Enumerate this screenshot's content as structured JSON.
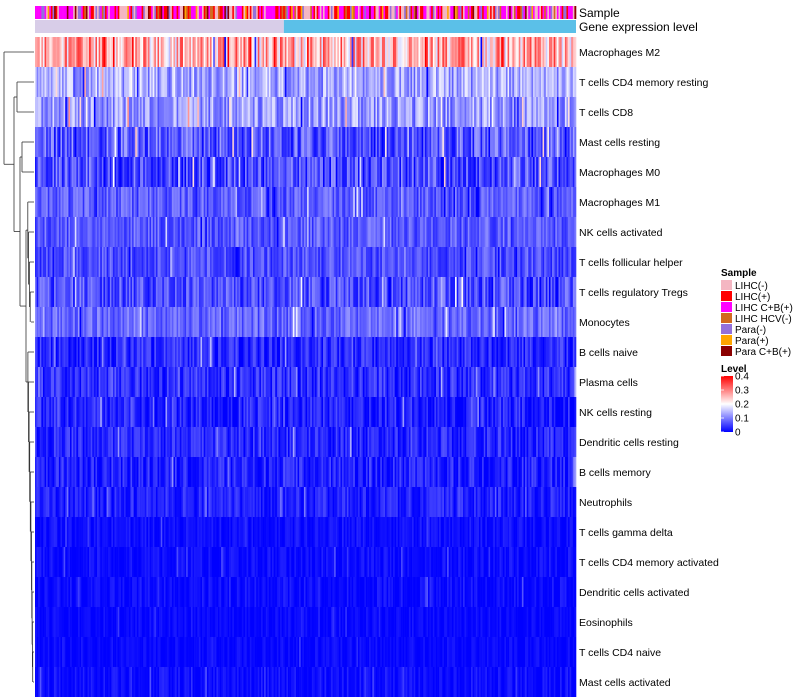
{
  "chart_data": {
    "type": "heatmap",
    "title": "",
    "column_count": 340,
    "annotations": {
      "sample_label": "Sample",
      "expression_label": "Gene expression level"
    },
    "rows": [
      {
        "name": "Macrophages M2",
        "mean": 0.26,
        "spread": 0.1
      },
      {
        "name": "T cells CD4 memory resting",
        "mean": 0.13,
        "spread": 0.06
      },
      {
        "name": "T cells CD8",
        "mean": 0.12,
        "spread": 0.06
      },
      {
        "name": "Mast cells resting",
        "mean": 0.07,
        "spread": 0.06
      },
      {
        "name": "Macrophages M0",
        "mean": 0.06,
        "spread": 0.06
      },
      {
        "name": "Macrophages M1",
        "mean": 0.07,
        "spread": 0.04
      },
      {
        "name": "NK cells activated",
        "mean": 0.07,
        "spread": 0.04
      },
      {
        "name": "T cells follicular helper",
        "mean": 0.06,
        "spread": 0.04
      },
      {
        "name": "T cells regulatory  Tregs",
        "mean": 0.06,
        "spread": 0.05
      },
      {
        "name": "Monocytes",
        "mean": 0.08,
        "spread": 0.04
      },
      {
        "name": "B cells naive",
        "mean": 0.03,
        "spread": 0.04
      },
      {
        "name": "Plasma cells",
        "mean": 0.035,
        "spread": 0.04
      },
      {
        "name": "NK cells resting",
        "mean": 0.025,
        "spread": 0.04
      },
      {
        "name": "Dendritic cells resting",
        "mean": 0.03,
        "spread": 0.035
      },
      {
        "name": "B cells memory",
        "mean": 0.025,
        "spread": 0.035
      },
      {
        "name": "Neutrophils",
        "mean": 0.025,
        "spread": 0.03
      },
      {
        "name": "T cells gamma delta",
        "mean": 0.01,
        "spread": 0.02
      },
      {
        "name": "T cells CD4 memory activated",
        "mean": 0.008,
        "spread": 0.02
      },
      {
        "name": "Dendritic cells activated",
        "mean": 0.008,
        "spread": 0.02
      },
      {
        "name": "Eosinophils",
        "mean": 0.005,
        "spread": 0.015
      },
      {
        "name": "T cells CD4 naive",
        "mean": 0.005,
        "spread": 0.015
      },
      {
        "name": "Mast cells activated",
        "mean": 0.01,
        "spread": 0.02
      }
    ],
    "color_scale": {
      "min": 0,
      "max": 0.4,
      "colors": [
        "#0000ff",
        "#ffffff",
        "#ff0000"
      ],
      "ticks": [
        0.4,
        0.3,
        0.2,
        0.1,
        0
      ]
    },
    "legend": {
      "sample_title": "Sample",
      "level_title": "Level",
      "sample_groups": [
        {
          "label": "LIHC(-)",
          "color": "#f4b6c2"
        },
        {
          "label": "LIHC(+)",
          "color": "#ff0000"
        },
        {
          "label": "LIHC C+B(+)",
          "color": "#ff00ff"
        },
        {
          "label": "LIHC HCV(-)",
          "color": "#d2691e"
        },
        {
          "label": "Para(-)",
          "color": "#9370db"
        },
        {
          "label": "Para(+)",
          "color": "#ffa500"
        },
        {
          "label": "Para C+B(+)",
          "color": "#8b0000"
        }
      ],
      "expression_bar_colors": [
        "#d8cde8",
        "#5bc0e8"
      ]
    }
  }
}
